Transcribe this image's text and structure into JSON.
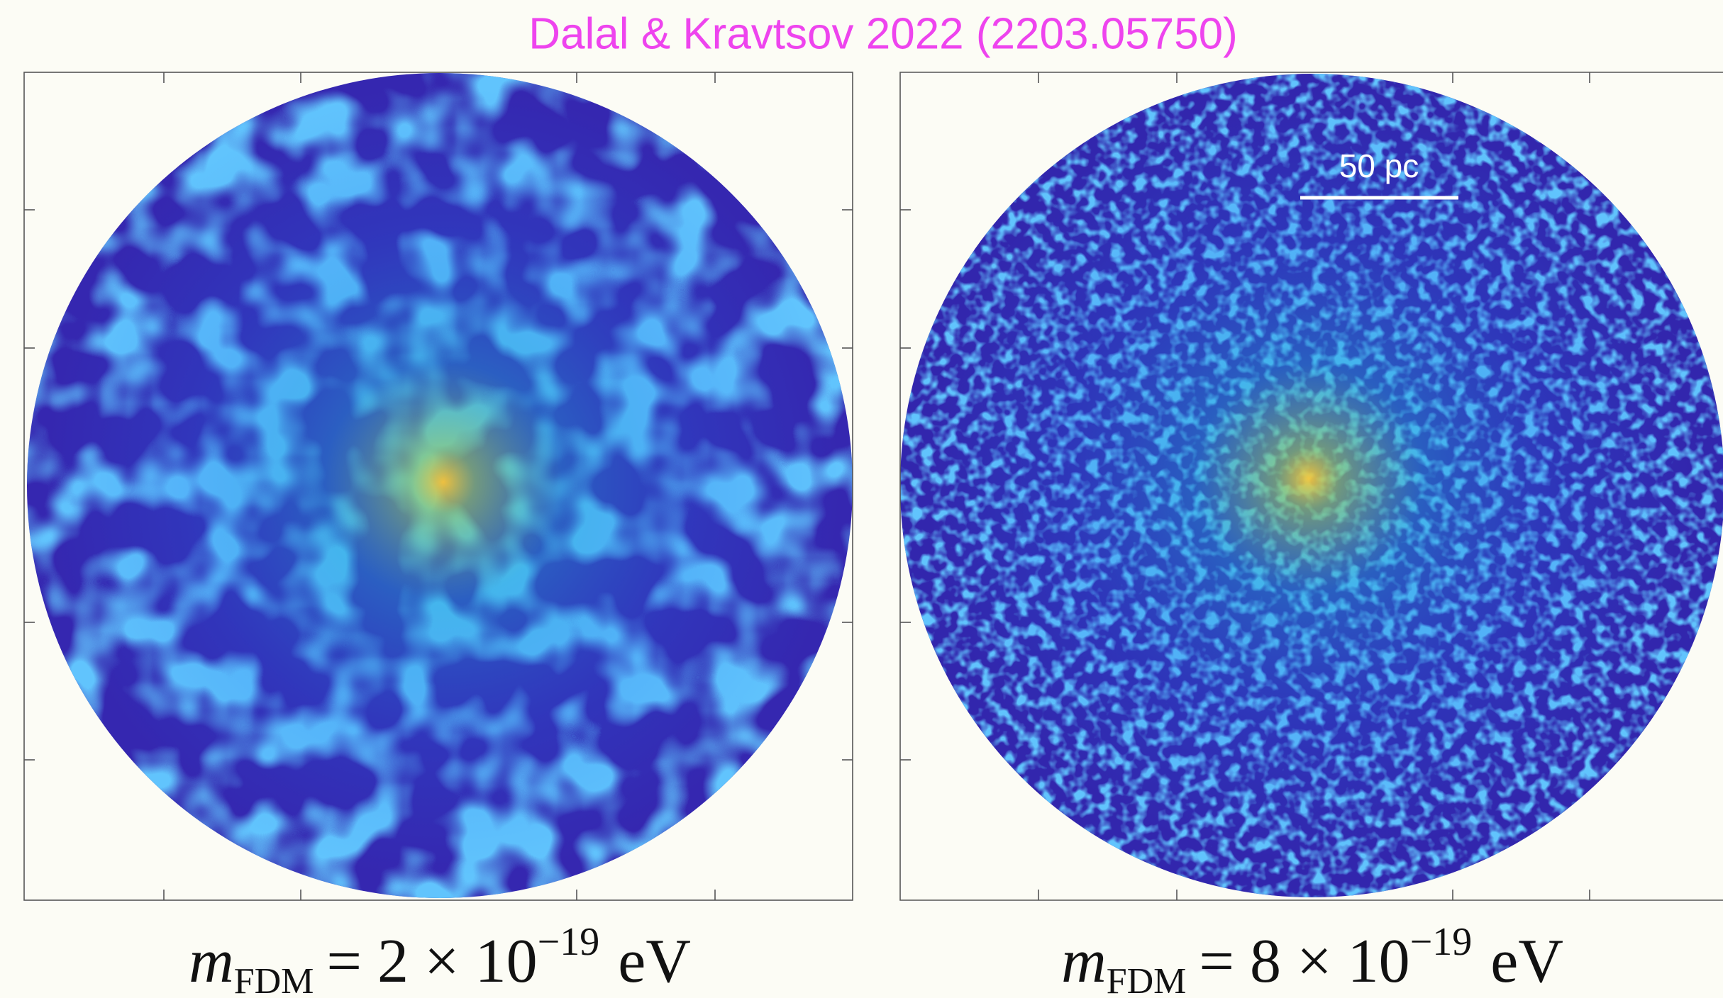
{
  "title": "Dalal & Kravtsov 2022 (2203.05750)",
  "panels": [
    {
      "symbol": "m",
      "subscript": "FDM",
      "equation": "= 2 × 10",
      "exponent": "−19",
      "unit": "eV"
    },
    {
      "symbol": "m",
      "subscript": "FDM",
      "equation": "= 8 × 10",
      "exponent": "−19",
      "unit": "eV",
      "scale_bar": "50 pc"
    }
  ]
}
